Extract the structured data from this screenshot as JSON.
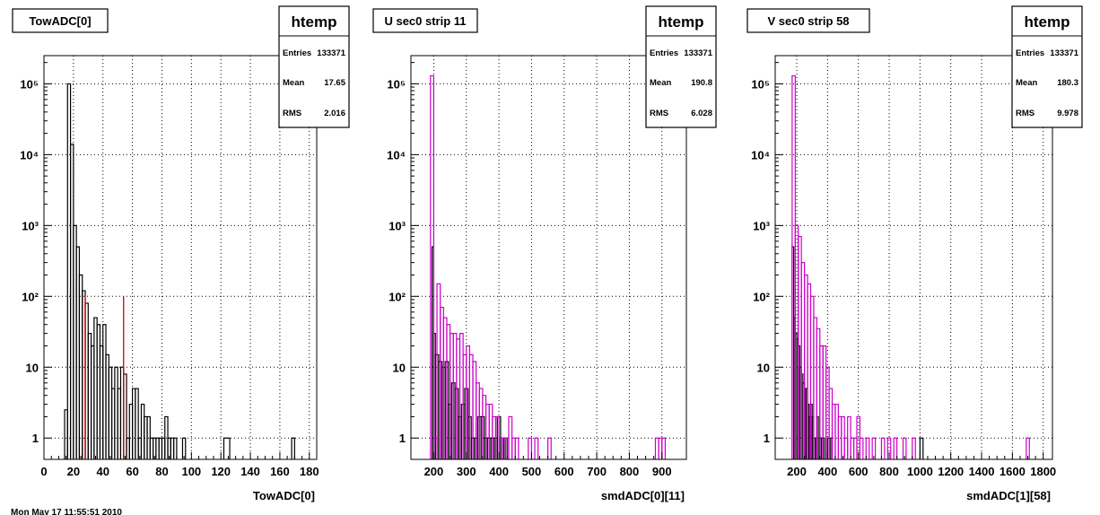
{
  "footer": "Mon May 17 11:55:51 2010",
  "colors": {
    "primary": "#000000",
    "secondary": "#cc00cc",
    "marker": "#d00000",
    "grid": "#000000"
  },
  "chart_data": [
    {
      "type": "histogram",
      "title": "TowADC[0]",
      "xlabel": "TowADC[0]",
      "log_y": true,
      "grid": true,
      "xlim": [
        0,
        185
      ],
      "ylim": [
        0.5,
        250000
      ],
      "x_ticks": [
        0,
        20,
        40,
        60,
        80,
        100,
        120,
        140,
        160,
        180
      ],
      "y_ticks": [
        {
          "value": 1,
          "label": "1"
        },
        {
          "value": 10,
          "label": "10"
        },
        {
          "value": 100,
          "label": "10²"
        },
        {
          "value": 1000,
          "label": "10³"
        },
        {
          "value": 10000,
          "label": "10⁴"
        },
        {
          "value": 100000,
          "label": "10⁵"
        }
      ],
      "stats": {
        "name": "htemp",
        "entries_label": "Entries",
        "entries": "133371",
        "mean_label": "Mean",
        "mean": "17.65",
        "rms_label": "RMS",
        "rms": "2.016"
      },
      "series": [
        {
          "color": "#000000",
          "bins": [
            [
              14,
              16,
              2.5
            ],
            [
              16,
              18,
              100000
            ],
            [
              18,
              20,
              14000
            ],
            [
              20,
              22,
              1000
            ],
            [
              22,
              24,
              500
            ],
            [
              24,
              26,
              200
            ],
            [
              26,
              28,
              120
            ],
            [
              28,
              30,
              80
            ],
            [
              30,
              32,
              30
            ],
            [
              32,
              34,
              20
            ],
            [
              34,
              36,
              50
            ],
            [
              36,
              38,
              40
            ],
            [
              38,
              40,
              20
            ],
            [
              40,
              42,
              40
            ],
            [
              42,
              44,
              15
            ],
            [
              44,
              46,
              10
            ],
            [
              46,
              48,
              5
            ],
            [
              48,
              50,
              10
            ],
            [
              50,
              52,
              5
            ],
            [
              52,
              54,
              10
            ],
            [
              54,
              56,
              8
            ],
            [
              56,
              58,
              1
            ],
            [
              58,
              60,
              3
            ],
            [
              60,
              62,
              5
            ],
            [
              62,
              64,
              5
            ],
            [
              64,
              66,
              1
            ],
            [
              66,
              68,
              3
            ],
            [
              68,
              70,
              2
            ],
            [
              70,
              72,
              2
            ],
            [
              72,
              74,
              1
            ],
            [
              74,
              76,
              1
            ],
            [
              76,
              78,
              1
            ],
            [
              78,
              80,
              1
            ],
            [
              80,
              82,
              1
            ],
            [
              82,
              84,
              2
            ],
            [
              84,
              86,
              1
            ],
            [
              86,
              88,
              1
            ],
            [
              88,
              90,
              1
            ],
            [
              94,
              96,
              1
            ],
            [
              122,
              126,
              1
            ],
            [
              168,
              170,
              1
            ]
          ]
        }
      ],
      "markers": [
        {
          "x": 28,
          "y": 100
        },
        {
          "x": 54,
          "y": 100
        }
      ]
    },
    {
      "type": "histogram",
      "title": "U sec0 strip 11",
      "xlabel": "smdADC[0][11]",
      "log_y": true,
      "grid": true,
      "xlim": [
        130,
        975
      ],
      "ylim": [
        0.5,
        250000
      ],
      "x_ticks": [
        200,
        300,
        400,
        500,
        600,
        700,
        800,
        900
      ],
      "y_ticks": [
        {
          "value": 1,
          "label": "1"
        },
        {
          "value": 10,
          "label": "10"
        },
        {
          "value": 100,
          "label": "10²"
        },
        {
          "value": 1000,
          "label": "10³"
        },
        {
          "value": 10000,
          "label": "10⁴"
        },
        {
          "value": 100000,
          "label": "10⁵"
        }
      ],
      "stats": {
        "name": "htemp",
        "entries_label": "Entries",
        "entries": "133371",
        "mean_label": "Mean",
        "mean": "190.8",
        "rms_label": "RMS",
        "rms": "6.028"
      },
      "series": [
        {
          "color": "#000000",
          "bins": [
            [
              195,
              200,
              500
            ],
            [
              200,
              205,
              30
            ],
            [
              205,
              215,
              15
            ],
            [
              215,
              225,
              12
            ],
            [
              225,
              235,
              10
            ],
            [
              235,
              245,
              12
            ],
            [
              245,
              255,
              3
            ],
            [
              255,
              265,
              6
            ],
            [
              265,
              275,
              5
            ],
            [
              275,
              285,
              2
            ],
            [
              285,
              295,
              3
            ],
            [
              295,
              305,
              5
            ],
            [
              305,
              315,
              2
            ],
            [
              315,
              325,
              1
            ],
            [
              325,
              335,
              1
            ],
            [
              335,
              345,
              2
            ],
            [
              345,
              355,
              2
            ],
            [
              355,
              365,
              1
            ],
            [
              365,
              375,
              1
            ],
            [
              375,
              385,
              1
            ],
            [
              385,
              395,
              1
            ],
            [
              395,
              405,
              2
            ],
            [
              405,
              415,
              1
            ],
            [
              415,
              425,
              1
            ]
          ]
        },
        {
          "color": "#cc00cc",
          "bins": [
            [
              190,
              200,
              130000
            ],
            [
              200,
              210,
              1
            ],
            [
              210,
              220,
              150
            ],
            [
              220,
              230,
              70
            ],
            [
              230,
              240,
              50
            ],
            [
              240,
              250,
              40
            ],
            [
              250,
              260,
              30
            ],
            [
              260,
              270,
              30
            ],
            [
              270,
              280,
              25
            ],
            [
              280,
              290,
              30
            ],
            [
              290,
              300,
              15
            ],
            [
              300,
              310,
              20
            ],
            [
              310,
              320,
              15
            ],
            [
              320,
              330,
              12
            ],
            [
              330,
              340,
              6
            ],
            [
              340,
              350,
              5
            ],
            [
              350,
              360,
              4
            ],
            [
              360,
              370,
              3
            ],
            [
              370,
              380,
              3
            ],
            [
              380,
              390,
              2
            ],
            [
              390,
              400,
              2
            ],
            [
              400,
              410,
              1
            ],
            [
              410,
              420,
              1
            ],
            [
              420,
              430,
              1
            ],
            [
              430,
              440,
              2
            ],
            [
              440,
              450,
              1
            ],
            [
              450,
              460,
              1
            ],
            [
              490,
              500,
              1
            ],
            [
              510,
              520,
              1
            ],
            [
              550,
              560,
              1
            ],
            [
              880,
              890,
              1
            ],
            [
              890,
              900,
              1
            ],
            [
              900,
              910,
              1
            ]
          ]
        }
      ]
    },
    {
      "type": "histogram",
      "title": "V sec0 strip 58",
      "xlabel": "smdADC[1][58]",
      "log_y": true,
      "grid": true,
      "xlim": [
        60,
        1860
      ],
      "ylim": [
        0.5,
        250000
      ],
      "x_ticks": [
        200,
        400,
        600,
        800,
        1000,
        1200,
        1400,
        1600,
        1800
      ],
      "y_ticks": [
        {
          "value": 1,
          "label": "1"
        },
        {
          "value": 10,
          "label": "10"
        },
        {
          "value": 100,
          "label": "10²"
        },
        {
          "value": 1000,
          "label": "10³"
        },
        {
          "value": 10000,
          "label": "10⁴"
        },
        {
          "value": 100000,
          "label": "10⁵"
        }
      ],
      "stats": {
        "name": "htemp",
        "entries_label": "Entries",
        "entries": "133371",
        "mean_label": "Mean",
        "mean": "180.3",
        "rms_label": "RMS",
        "rms": "9.978"
      },
      "series": [
        {
          "color": "#000000",
          "bins": [
            [
              170,
              180,
              500
            ],
            [
              180,
              190,
              50
            ],
            [
              190,
              200,
              30
            ],
            [
              200,
              210,
              25
            ],
            [
              210,
              220,
              20
            ],
            [
              220,
              230,
              10
            ],
            [
              230,
              240,
              8
            ],
            [
              240,
              250,
              6
            ],
            [
              250,
              260,
              5
            ],
            [
              260,
              270,
              5
            ],
            [
              270,
              280,
              3
            ],
            [
              280,
              290,
              2
            ],
            [
              290,
              300,
              3
            ],
            [
              300,
              310,
              2
            ],
            [
              310,
              320,
              1
            ],
            [
              320,
              330,
              1
            ],
            [
              330,
              340,
              2
            ],
            [
              340,
              350,
              1
            ],
            [
              350,
              360,
              1
            ],
            [
              360,
              370,
              1
            ],
            [
              370,
              380,
              1
            ],
            [
              400,
              410,
              1
            ],
            [
              420,
              430,
              1
            ],
            [
              1000,
              1020,
              1
            ]
          ]
        },
        {
          "color": "#cc00cc",
          "bins": [
            [
              170,
              190,
              130000
            ],
            [
              190,
              210,
              1000
            ],
            [
              210,
              230,
              700
            ],
            [
              230,
              250,
              300
            ],
            [
              250,
              270,
              200
            ],
            [
              270,
              290,
              150
            ],
            [
              290,
              310,
              100
            ],
            [
              310,
              330,
              50
            ],
            [
              330,
              350,
              35
            ],
            [
              350,
              370,
              20
            ],
            [
              370,
              390,
              20
            ],
            [
              390,
              410,
              10
            ],
            [
              410,
              430,
              5
            ],
            [
              430,
              450,
              3
            ],
            [
              450,
              470,
              3
            ],
            [
              470,
              490,
              2
            ],
            [
              490,
              510,
              2
            ],
            [
              510,
              530,
              1
            ],
            [
              530,
              550,
              2
            ],
            [
              550,
              570,
              1
            ],
            [
              570,
              590,
              1
            ],
            [
              590,
              610,
              2
            ],
            [
              610,
              630,
              1
            ],
            [
              650,
              670,
              1
            ],
            [
              690,
              710,
              1
            ],
            [
              750,
              770,
              1
            ],
            [
              790,
              810,
              1
            ],
            [
              830,
              850,
              1
            ],
            [
              890,
              910,
              1
            ],
            [
              950,
              970,
              1
            ],
            [
              1690,
              1710,
              1
            ]
          ]
        }
      ]
    }
  ]
}
